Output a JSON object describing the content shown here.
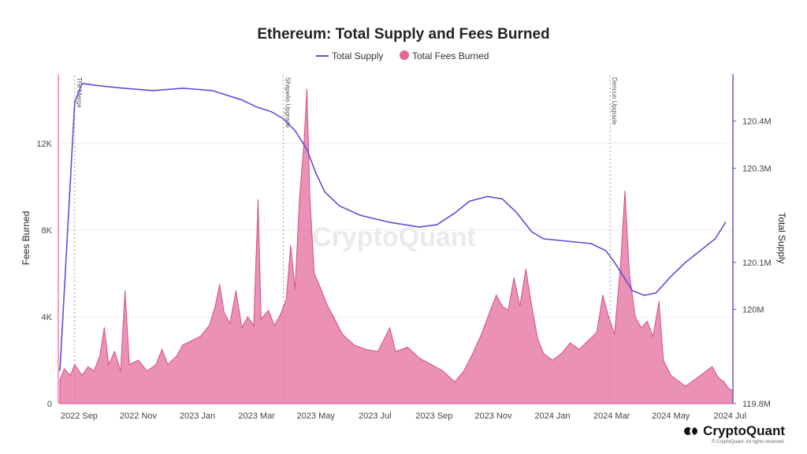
{
  "chart_data": {
    "type": "area",
    "title": "Ethereum: Total Supply and Fees Burned",
    "legend": [
      {
        "label": "Total Supply",
        "color": "#5b4fd6",
        "marker": "line"
      },
      {
        "label": "Total Fees Burned",
        "color": "#e36699",
        "marker": "dot"
      }
    ],
    "legend_position": "top-center",
    "ylabel": "Fees Burned",
    "y2label": "Total Supply",
    "y_ticks": [
      "0",
      "4K",
      "8K",
      "12K"
    ],
    "y_tick_values": [
      0,
      4000,
      8000,
      12000
    ],
    "ylim": [
      0,
      15200
    ],
    "y2_ticks": [
      "119.8M",
      "120M",
      "120.1M",
      "120.3M",
      "120.4M"
    ],
    "y2_tick_values": [
      119.8,
      120.0,
      120.1,
      120.3,
      120.4
    ],
    "y2lim": [
      119.8,
      120.5
    ],
    "x_ticks": [
      "2022 Sep",
      "2022 Nov",
      "2023 Jan",
      "2023 Mar",
      "2023 May",
      "2023 Jul",
      "2023 Sep",
      "2023 Nov",
      "2024 Jan",
      "2024 Mar",
      "2024 May",
      "2024 Jul"
    ],
    "x_tick_positions": [
      0.5,
      2.5,
      4.5,
      6.5,
      8.5,
      10.5,
      12.5,
      14.5,
      16.5,
      18.5,
      20.5,
      22.5
    ],
    "xlim": [
      -0.15,
      22.6
    ],
    "events": [
      {
        "label": "The Merge",
        "x": 0.35
      },
      {
        "label": "Shapella Upgrade",
        "x": 7.4
      },
      {
        "label": "Dencun Upgrade",
        "x": 18.45
      }
    ],
    "supply_series": {
      "name": "Total Supply",
      "color": "#5b4fd6",
      "points": [
        [
          -0.15,
          119.87
        ],
        [
          0.35,
          120.44
        ],
        [
          0.6,
          120.48
        ],
        [
          1.2,
          120.475
        ],
        [
          2.0,
          120.47
        ],
        [
          3.0,
          120.465
        ],
        [
          4.0,
          120.47
        ],
        [
          5.0,
          120.465
        ],
        [
          6.0,
          120.445
        ],
        [
          6.5,
          120.43
        ],
        [
          7.0,
          120.42
        ],
        [
          7.4,
          120.405
        ],
        [
          7.8,
          120.38
        ],
        [
          8.2,
          120.34
        ],
        [
          8.5,
          120.29
        ],
        [
          8.8,
          120.25
        ],
        [
          9.3,
          120.22
        ],
        [
          10.0,
          120.2
        ],
        [
          11.0,
          120.185
        ],
        [
          12.0,
          120.175
        ],
        [
          12.6,
          120.18
        ],
        [
          13.2,
          120.205
        ],
        [
          13.7,
          120.23
        ],
        [
          14.3,
          120.24
        ],
        [
          14.8,
          120.235
        ],
        [
          15.3,
          120.205
        ],
        [
          15.8,
          120.165
        ],
        [
          16.2,
          120.15
        ],
        [
          17.0,
          120.145
        ],
        [
          17.8,
          120.14
        ],
        [
          18.3,
          120.125
        ],
        [
          18.6,
          120.1
        ],
        [
          18.9,
          120.07
        ],
        [
          19.2,
          120.04
        ],
        [
          19.6,
          120.03
        ],
        [
          20.0,
          120.035
        ],
        [
          20.5,
          120.07
        ],
        [
          21.0,
          120.1
        ],
        [
          21.5,
          120.125
        ],
        [
          22.0,
          120.15
        ],
        [
          22.35,
          120.185
        ]
      ]
    },
    "fees_series": {
      "name": "Total Fees Burned",
      "color": "#e36699",
      "points": [
        [
          -0.15,
          1100
        ],
        [
          0.0,
          1600
        ],
        [
          0.2,
          1300
        ],
        [
          0.35,
          1800
        ],
        [
          0.6,
          1300
        ],
        [
          0.8,
          1700
        ],
        [
          1.0,
          1500
        ],
        [
          1.2,
          2200
        ],
        [
          1.35,
          3500
        ],
        [
          1.5,
          1800
        ],
        [
          1.7,
          2400
        ],
        [
          1.9,
          1500
        ],
        [
          2.05,
          5200
        ],
        [
          2.2,
          1800
        ],
        [
          2.5,
          2000
        ],
        [
          2.8,
          1500
        ],
        [
          3.1,
          1800
        ],
        [
          3.3,
          2500
        ],
        [
          3.5,
          1800
        ],
        [
          3.8,
          2200
        ],
        [
          4.0,
          2700
        ],
        [
          4.3,
          2900
        ],
        [
          4.6,
          3100
        ],
        [
          4.9,
          3600
        ],
        [
          5.1,
          4500
        ],
        [
          5.25,
          5500
        ],
        [
          5.4,
          4200
        ],
        [
          5.6,
          3700
        ],
        [
          5.8,
          5200
        ],
        [
          6.0,
          3500
        ],
        [
          6.2,
          4000
        ],
        [
          6.4,
          3600
        ],
        [
          6.55,
          9400
        ],
        [
          6.65,
          3900
        ],
        [
          6.9,
          4300
        ],
        [
          7.1,
          3600
        ],
        [
          7.3,
          4100
        ],
        [
          7.5,
          4800
        ],
        [
          7.65,
          7300
        ],
        [
          7.8,
          5300
        ],
        [
          7.95,
          9500
        ],
        [
          8.1,
          12000
        ],
        [
          8.2,
          14500
        ],
        [
          8.3,
          9500
        ],
        [
          8.45,
          6000
        ],
        [
          8.7,
          5200
        ],
        [
          8.9,
          4500
        ],
        [
          9.1,
          4000
        ],
        [
          9.4,
          3200
        ],
        [
          9.8,
          2700
        ],
        [
          10.2,
          2500
        ],
        [
          10.6,
          2400
        ],
        [
          11.0,
          3500
        ],
        [
          11.2,
          2400
        ],
        [
          11.6,
          2600
        ],
        [
          12.0,
          2100
        ],
        [
          12.4,
          1800
        ],
        [
          12.8,
          1500
        ],
        [
          13.2,
          1000
        ],
        [
          13.5,
          1500
        ],
        [
          13.8,
          2300
        ],
        [
          14.1,
          3200
        ],
        [
          14.4,
          4300
        ],
        [
          14.6,
          5000
        ],
        [
          14.8,
          4500
        ],
        [
          15.0,
          4300
        ],
        [
          15.2,
          5800
        ],
        [
          15.4,
          4500
        ],
        [
          15.6,
          6200
        ],
        [
          15.8,
          4500
        ],
        [
          16.0,
          3000
        ],
        [
          16.2,
          2300
        ],
        [
          16.5,
          2000
        ],
        [
          16.8,
          2300
        ],
        [
          17.1,
          2800
        ],
        [
          17.4,
          2500
        ],
        [
          17.7,
          2900
        ],
        [
          18.0,
          3300
        ],
        [
          18.2,
          5000
        ],
        [
          18.4,
          4000
        ],
        [
          18.6,
          3200
        ],
        [
          18.8,
          6400
        ],
        [
          18.95,
          9800
        ],
        [
          19.1,
          6000
        ],
        [
          19.3,
          4000
        ],
        [
          19.5,
          3500
        ],
        [
          19.7,
          3800
        ],
        [
          19.9,
          3100
        ],
        [
          20.1,
          4700
        ],
        [
          20.25,
          2000
        ],
        [
          20.5,
          1300
        ],
        [
          20.8,
          1000
        ],
        [
          21.0,
          800
        ],
        [
          21.3,
          1100
        ],
        [
          21.6,
          1400
        ],
        [
          21.9,
          1700
        ],
        [
          22.1,
          1200
        ],
        [
          22.3,
          1000
        ],
        [
          22.45,
          700
        ],
        [
          22.6,
          600
        ]
      ]
    },
    "watermark": "CryptoQuant"
  },
  "brand": {
    "name": "CryptoQuant",
    "note": "© CryptoQuant. All rights reserved."
  }
}
